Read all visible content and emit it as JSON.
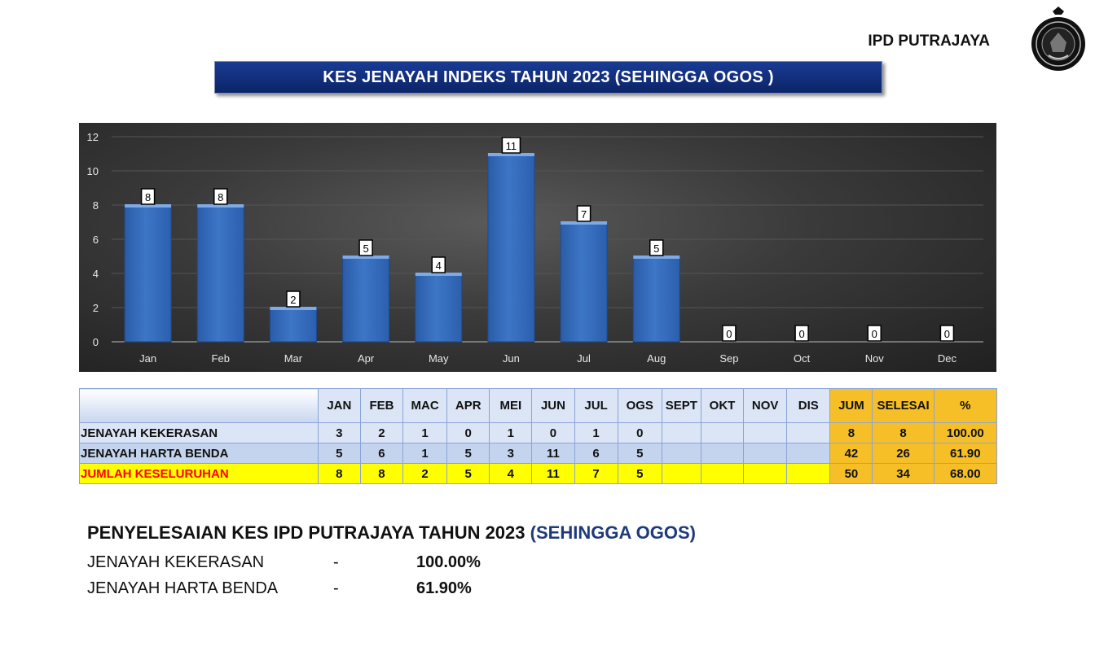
{
  "header": {
    "org": "IPD PUTRAJAYA",
    "title": "KES JENAYAH INDEKS  TAHUN 2023 (SEHINGGA OGOS )"
  },
  "chart_data": {
    "type": "bar",
    "categories": [
      "Jan",
      "Feb",
      "Mar",
      "Apr",
      "May",
      "Jun",
      "Jul",
      "Aug",
      "Sep",
      "Oct",
      "Nov",
      "Dec"
    ],
    "values": [
      8,
      8,
      2,
      5,
      4,
      11,
      7,
      5,
      0,
      0,
      0,
      0
    ],
    "ylim": [
      0,
      12
    ],
    "yticks": [
      0,
      2,
      4,
      6,
      8,
      10,
      12
    ],
    "grid": true,
    "colors": {
      "bar": "#3d76c6",
      "background": "#333333"
    }
  },
  "table": {
    "columns": [
      "",
      "JAN",
      "FEB",
      "MAC",
      "APR",
      "MEI",
      "JUN",
      "JUL",
      "OGS",
      "SEPT",
      "OKT",
      "NOV",
      "DIS",
      "JUM",
      "SELESAI",
      "%"
    ],
    "rows": [
      {
        "label": "JENAYAH KEKERASAN",
        "values": [
          "3",
          "2",
          "1",
          "0",
          "1",
          "0",
          "1",
          "0",
          "",
          "",
          "",
          ""
        ],
        "jum": "8",
        "selesai": "8",
        "pct": "100.00"
      },
      {
        "label": "JENAYAH HARTA BENDA",
        "values": [
          "5",
          "6",
          "1",
          "5",
          "3",
          "11",
          "6",
          "5",
          "",
          "",
          "",
          ""
        ],
        "jum": "42",
        "selesai": "26",
        "pct": "61.90"
      },
      {
        "label": "JUMLAH KESELURUHAN",
        "values": [
          "8",
          "8",
          "2",
          "5",
          "4",
          "11",
          "7",
          "5",
          "",
          "",
          "",
          ""
        ],
        "jum": "50",
        "selesai": "34",
        "pct": "68.00"
      }
    ]
  },
  "summary": {
    "title": "PENYELESAIAN KES IPD PUTRAJAYA TAHUN 2023",
    "title_paren": "(SEHINGGA OGOS)",
    "items": [
      {
        "label": "JENAYAH KEKERASAN",
        "dash": "-",
        "value": "100.00%"
      },
      {
        "label": "JENAYAH HARTA BENDA",
        "dash": "-",
        "value": "61.90%"
      }
    ]
  }
}
